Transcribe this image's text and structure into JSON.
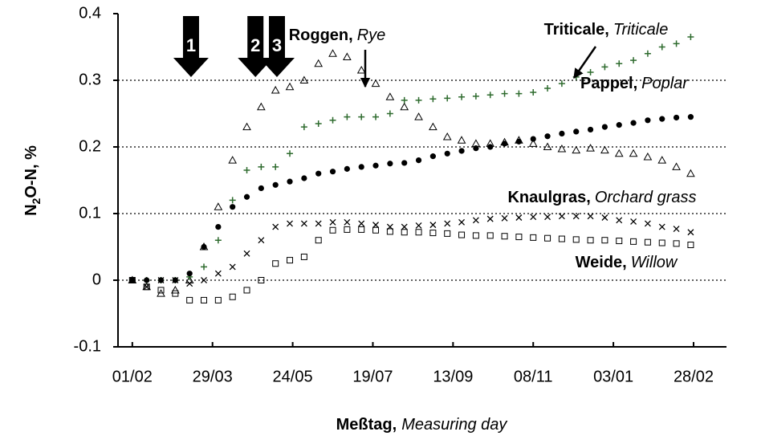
{
  "chart_data": {
    "type": "scatter",
    "x_label": [
      "Meßtag,",
      "Measuring day"
    ],
    "y_label": [
      "N",
      "2",
      "O-N, %"
    ],
    "xlim": [
      -10,
      415
    ],
    "xticks": [
      {
        "value": 0,
        "label": "01/02"
      },
      {
        "value": 56,
        "label": "29/03"
      },
      {
        "value": 112,
        "label": "24/05"
      },
      {
        "value": 168,
        "label": "19/07"
      },
      {
        "value": 224,
        "label": "13/09"
      },
      {
        "value": 280,
        "label": "08/11"
      },
      {
        "value": 336,
        "label": "03/01"
      },
      {
        "value": 392,
        "label": "28/02"
      }
    ],
    "ylim": [
      -0.1,
      0.4
    ],
    "yticks": [
      -0.1,
      0,
      0.1,
      0.2,
      0.3,
      0.4
    ],
    "grid": true,
    "x": [
      0,
      10,
      20,
      30,
      40,
      50,
      60,
      70,
      80,
      90,
      100,
      110,
      120,
      130,
      140,
      150,
      160,
      170,
      180,
      190,
      200,
      210,
      220,
      230,
      240,
      250,
      260,
      270,
      280,
      290,
      300,
      310,
      320,
      330,
      340,
      350,
      360,
      370,
      380,
      390
    ],
    "series": [
      {
        "name": "Roggen,",
        "translation": "Rye",
        "color": "#000000",
        "marker": "triangle",
        "values": [
          0,
          -0.01,
          -0.02,
          -0.015,
          0,
          0.05,
          0.11,
          0.18,
          0.23,
          0.26,
          0.285,
          0.29,
          0.3,
          0.325,
          0.34,
          0.335,
          0.315,
          0.295,
          0.275,
          0.26,
          0.245,
          0.23,
          0.215,
          0.21,
          0.205,
          0.205,
          0.207,
          0.21,
          0.205,
          0.2,
          0.197,
          0.195,
          0.198,
          0.195,
          0.19,
          0.19,
          0.185,
          0.18,
          0.17,
          0.16
        ]
      },
      {
        "name": "Triticale,",
        "translation": "Triticale",
        "color": "#2e6b2e",
        "marker": "plus",
        "values": [
          0,
          0,
          0,
          0,
          0.005,
          0.02,
          0.06,
          0.12,
          0.165,
          0.17,
          0.17,
          0.19,
          0.23,
          0.235,
          0.24,
          0.245,
          0.245,
          0.245,
          0.25,
          0.27,
          0.27,
          0.272,
          0.273,
          0.275,
          0.276,
          0.278,
          0.28,
          0.28,
          0.282,
          0.288,
          0.295,
          0.305,
          0.312,
          0.32,
          0.325,
          0.33,
          0.34,
          0.35,
          0.355,
          0.365
        ]
      },
      {
        "name": "Pappel,",
        "translation": "Poplar",
        "color": "#000000",
        "marker": "circle",
        "values": [
          0,
          0,
          0,
          0,
          0.01,
          0.05,
          0.08,
          0.11,
          0.125,
          0.138,
          0.143,
          0.148,
          0.153,
          0.16,
          0.163,
          0.167,
          0.17,
          0.172,
          0.175,
          0.176,
          0.18,
          0.186,
          0.19,
          0.194,
          0.198,
          0.2,
          0.205,
          0.208,
          0.212,
          0.216,
          0.22,
          0.223,
          0.226,
          0.23,
          0.233,
          0.236,
          0.24,
          0.242,
          0.244,
          0.245
        ]
      },
      {
        "name": "Knaulgras,",
        "translation": "Orchard grass",
        "color": "#000000",
        "marker": "x",
        "values": [
          0,
          -0.01,
          0,
          0,
          -0.005,
          0,
          0.01,
          0.02,
          0.04,
          0.06,
          0.08,
          0.085,
          0.085,
          0.085,
          0.087,
          0.087,
          0.085,
          0.083,
          0.08,
          0.08,
          0.082,
          0.083,
          0.085,
          0.087,
          0.09,
          0.092,
          0.093,
          0.094,
          0.095,
          0.095,
          0.096,
          0.096,
          0.096,
          0.094,
          0.09,
          0.088,
          0.085,
          0.08,
          0.077,
          0.072
        ]
      },
      {
        "name": "Weide,",
        "translation": "Willow",
        "color": "#000000",
        "marker": "square",
        "values": [
          0,
          -0.01,
          -0.015,
          -0.02,
          -0.03,
          -0.03,
          -0.03,
          -0.025,
          -0.015,
          0,
          0.025,
          0.03,
          0.035,
          0.06,
          0.075,
          0.076,
          0.076,
          0.075,
          0.073,
          0.072,
          0.072,
          0.071,
          0.07,
          0.068,
          0.067,
          0.067,
          0.066,
          0.065,
          0.064,
          0.063,
          0.062,
          0.061,
          0.06,
          0.06,
          0.059,
          0.058,
          0.057,
          0.056,
          0.055,
          0.053
        ]
      }
    ],
    "arrows": [
      {
        "label": "1",
        "x": 41
      },
      {
        "label": "2",
        "x": 86
      },
      {
        "label": "3",
        "x": 101
      }
    ]
  }
}
